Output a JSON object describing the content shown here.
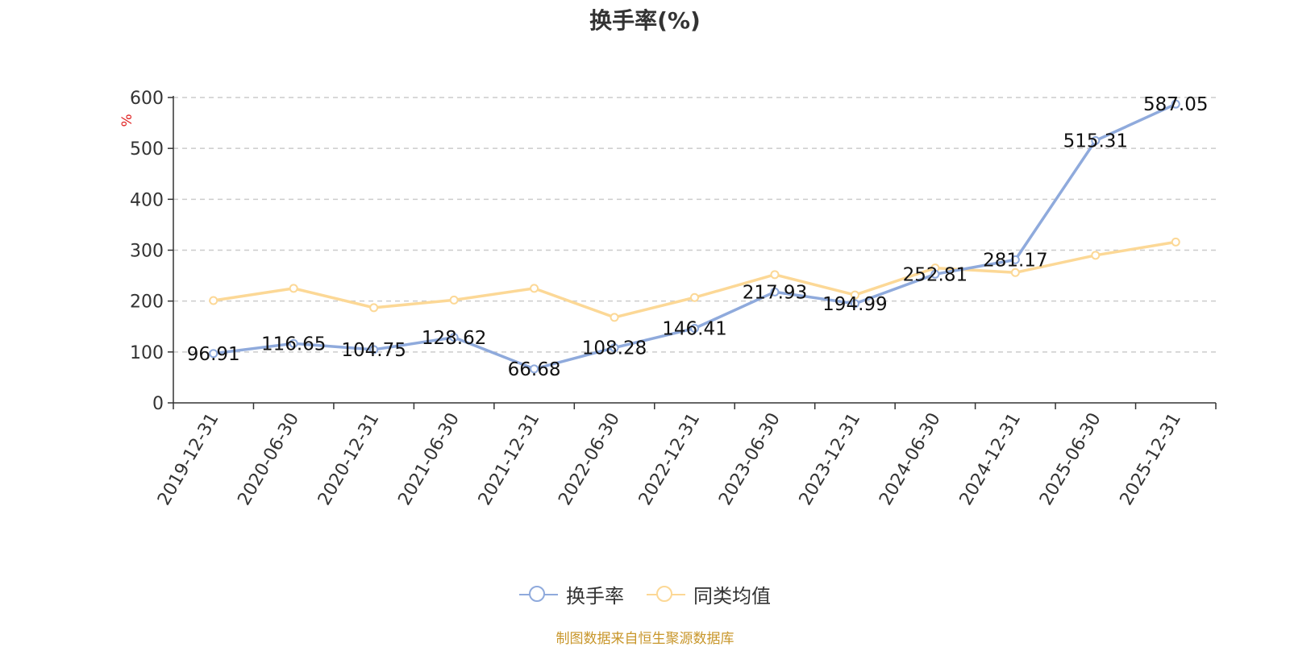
{
  "chart_data": {
    "type": "line",
    "title": "换手率(%)",
    "ylabel": "%",
    "ylim": [
      0,
      600
    ],
    "yticks": [
      0,
      100,
      200,
      300,
      400,
      500,
      600
    ],
    "categories": [
      "2019-12-31",
      "2020-06-30",
      "2020-12-31",
      "2021-06-30",
      "2021-12-31",
      "2022-06-30",
      "2022-12-31",
      "2023-06-30",
      "2023-12-31",
      "2024-06-30",
      "2024-12-31",
      "2025-06-30",
      "2025-12-31"
    ],
    "series": [
      {
        "name": "换手率",
        "color": "#8faadc",
        "values": [
          96.91,
          116.65,
          104.75,
          128.62,
          66.68,
          108.28,
          146.41,
          217.93,
          194.99,
          252.81,
          281.17,
          515.31,
          587.05
        ],
        "labels": [
          "96.91",
          "116.65",
          "104.75",
          "128.62",
          "66.68",
          "108.28",
          "146.41",
          "217.93",
          "194.99",
          "252.81",
          "281.17",
          "515.31",
          "587.05"
        ]
      },
      {
        "name": "同类均值",
        "color": "#fcd896",
        "values": [
          201,
          225,
          187,
          202,
          225,
          168,
          207,
          252,
          212,
          265,
          256,
          290,
          316
        ]
      }
    ],
    "grid": true,
    "legend_position": "bottom"
  },
  "footer": {
    "source": "制图数据来自恒生聚源数据库"
  }
}
